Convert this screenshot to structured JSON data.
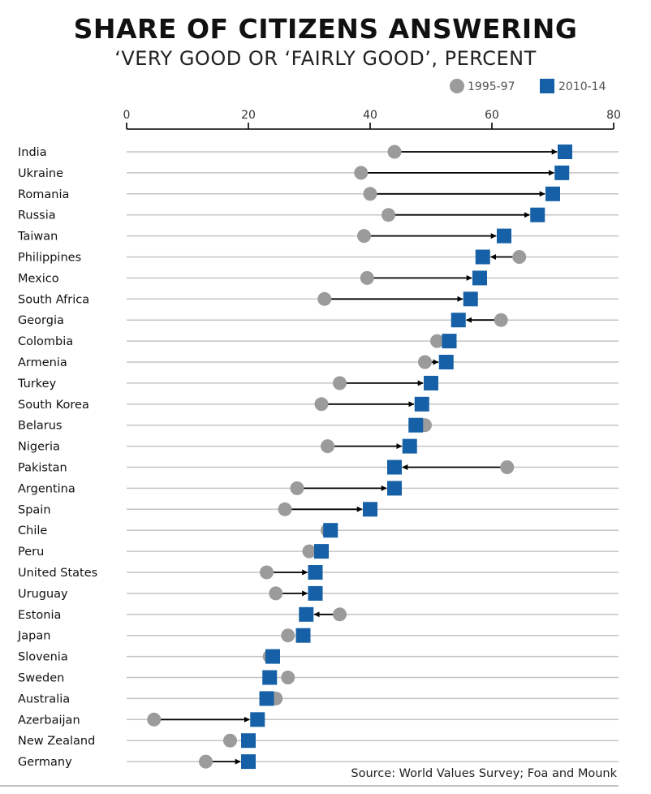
{
  "chart_data": {
    "type": "dumbbell",
    "title": "SHARE OF CITIZENS ANSWERING",
    "subtitle": "‘VERY GOOD OR ‘FAIRLY GOOD’, PERCENT",
    "xlim": [
      0,
      80
    ],
    "xticks": [
      "0",
      "20",
      "40",
      "60",
      "80"
    ],
    "legend_position": "top-right",
    "series": [
      {
        "name": "1995-97",
        "marker": "circle",
        "color": "#9b9b9b"
      },
      {
        "name": "2010-14",
        "marker": "square",
        "color": "#1560a6"
      }
    ],
    "categories": [
      "India",
      "Ukraine",
      "Romania",
      "Russia",
      "Taiwan",
      "Philippines",
      "Mexico",
      "South Africa",
      "Georgia",
      "Colombia",
      "Armenia",
      "Turkey",
      "South Korea",
      "Belarus",
      "Nigeria",
      "Pakistan",
      "Argentina",
      "Spain",
      "Chile",
      "Peru",
      "United States",
      "Uruguay",
      "Estonia",
      "Japan",
      "Slovenia",
      "Sweden",
      "Australia",
      "Azerbaijan",
      "New Zealand",
      "Germany"
    ],
    "values_1995_97": [
      44,
      38.5,
      40,
      43,
      39,
      64.5,
      39.5,
      32.5,
      61.5,
      51,
      49,
      35,
      32,
      49,
      33,
      62.5,
      28,
      26,
      33,
      30,
      23,
      24.5,
      35,
      26.5,
      23.5,
      26.5,
      24.5,
      4.5,
      17,
      13
    ],
    "values_2010_14": [
      72,
      71.5,
      70,
      67.5,
      62,
      58.5,
      58,
      56.5,
      54.5,
      53,
      52.5,
      50,
      48.5,
      47.5,
      46.5,
      44,
      44,
      40,
      33.5,
      32,
      31,
      31,
      29.5,
      29,
      24,
      23.5,
      23,
      21.5,
      20,
      20
    ],
    "arrow_color": "#000000",
    "source": "Source: World Values Survey; Foa and Mounk"
  }
}
